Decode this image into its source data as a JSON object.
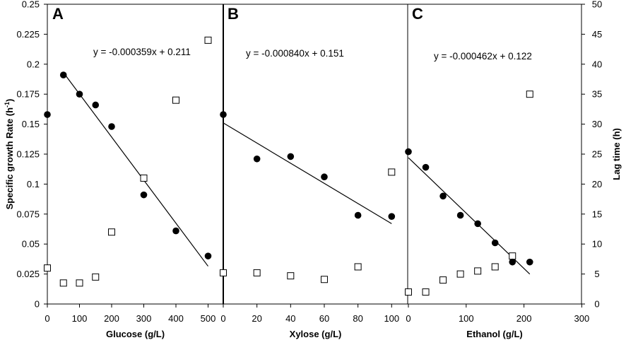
{
  "chart_data": {
    "type": "scatter",
    "left_axis": {
      "title_main": "Specific growth Rate (h",
      "title_sup": "-1",
      "title_end": ")",
      "ylim": [
        0,
        0.25
      ],
      "ticks": [
        "0",
        "0.025",
        "0.05",
        "0.075",
        "0.1",
        "0.125",
        "0.15",
        "0.175",
        "0.2",
        "0.225",
        "0.25"
      ]
    },
    "right_axis": {
      "title": "Lag time (h)",
      "ylim": [
        0,
        50
      ],
      "ticks": [
        "0",
        "5",
        "10",
        "15",
        "20",
        "25",
        "30",
        "35",
        "40",
        "45",
        "50"
      ]
    },
    "series": [
      {
        "name": "Specific growth rate",
        "marker": "filled-circle",
        "axis": "left"
      },
      {
        "name": "Lag time",
        "marker": "open-square",
        "axis": "right"
      }
    ],
    "panels": [
      {
        "letter": "A",
        "xlabel": "Glucose (g/L)",
        "xlim": [
          0,
          550
        ],
        "xticks": [
          "0",
          "100",
          "200",
          "300",
          "400",
          "500"
        ],
        "equation": "y = -0.000359x + 0.211",
        "growth_rate": {
          "x": [
            0,
            50,
            100,
            150,
            200,
            300,
            400,
            500
          ],
          "y": [
            0.158,
            0.191,
            0.175,
            0.166,
            0.148,
            0.091,
            0.061,
            0.04
          ]
        },
        "lag_time": {
          "x": [
            0,
            50,
            100,
            150,
            200,
            300,
            400,
            500
          ],
          "y": [
            6,
            3.5,
            3.5,
            4.5,
            12,
            21,
            34,
            44
          ]
        },
        "fit_x_range": [
          50,
          500
        ],
        "fit": {
          "slope": -0.000359,
          "intercept": 0.211
        }
      },
      {
        "letter": "B",
        "xlabel": "Xylose (g/L)",
        "xlim": [
          0,
          110
        ],
        "xticks": [
          "0",
          "20",
          "40",
          "60",
          "80",
          "100"
        ],
        "equation": "y = -0.000840x + 0.151",
        "growth_rate": {
          "x": [
            0,
            20,
            40,
            60,
            80,
            100
          ],
          "y": [
            0.158,
            0.121,
            0.123,
            0.106,
            0.074,
            0.073
          ]
        },
        "lag_time": {
          "x": [
            0,
            20,
            40,
            60,
            80,
            100
          ],
          "y": [
            5.2,
            5.2,
            4.7,
            4.1,
            6.2,
            22
          ]
        },
        "fit_x_range": [
          0,
          100
        ],
        "fit": {
          "slope": -0.00084,
          "intercept": 0.151
        }
      },
      {
        "letter": "C",
        "xlabel": "Ethanol (g/L)",
        "xlim": [
          0,
          300
        ],
        "xticks": [
          "0",
          "100",
          "200",
          "300"
        ],
        "equation": "y = -0.000462x + 0.122",
        "growth_rate": {
          "x": [
            0,
            30,
            60,
            90,
            120,
            150,
            180,
            210
          ],
          "y": [
            0.127,
            0.114,
            0.09,
            0.074,
            0.067,
            0.051,
            0.035,
            0.035
          ]
        },
        "lag_time": {
          "x": [
            0,
            30,
            60,
            90,
            120,
            150,
            180,
            210
          ],
          "y": [
            2,
            2,
            4,
            5,
            5.5,
            6.2,
            8,
            35
          ]
        },
        "fit_x_range": [
          0,
          210
        ],
        "fit": {
          "slope": -0.000462,
          "intercept": 0.122
        }
      }
    ]
  }
}
